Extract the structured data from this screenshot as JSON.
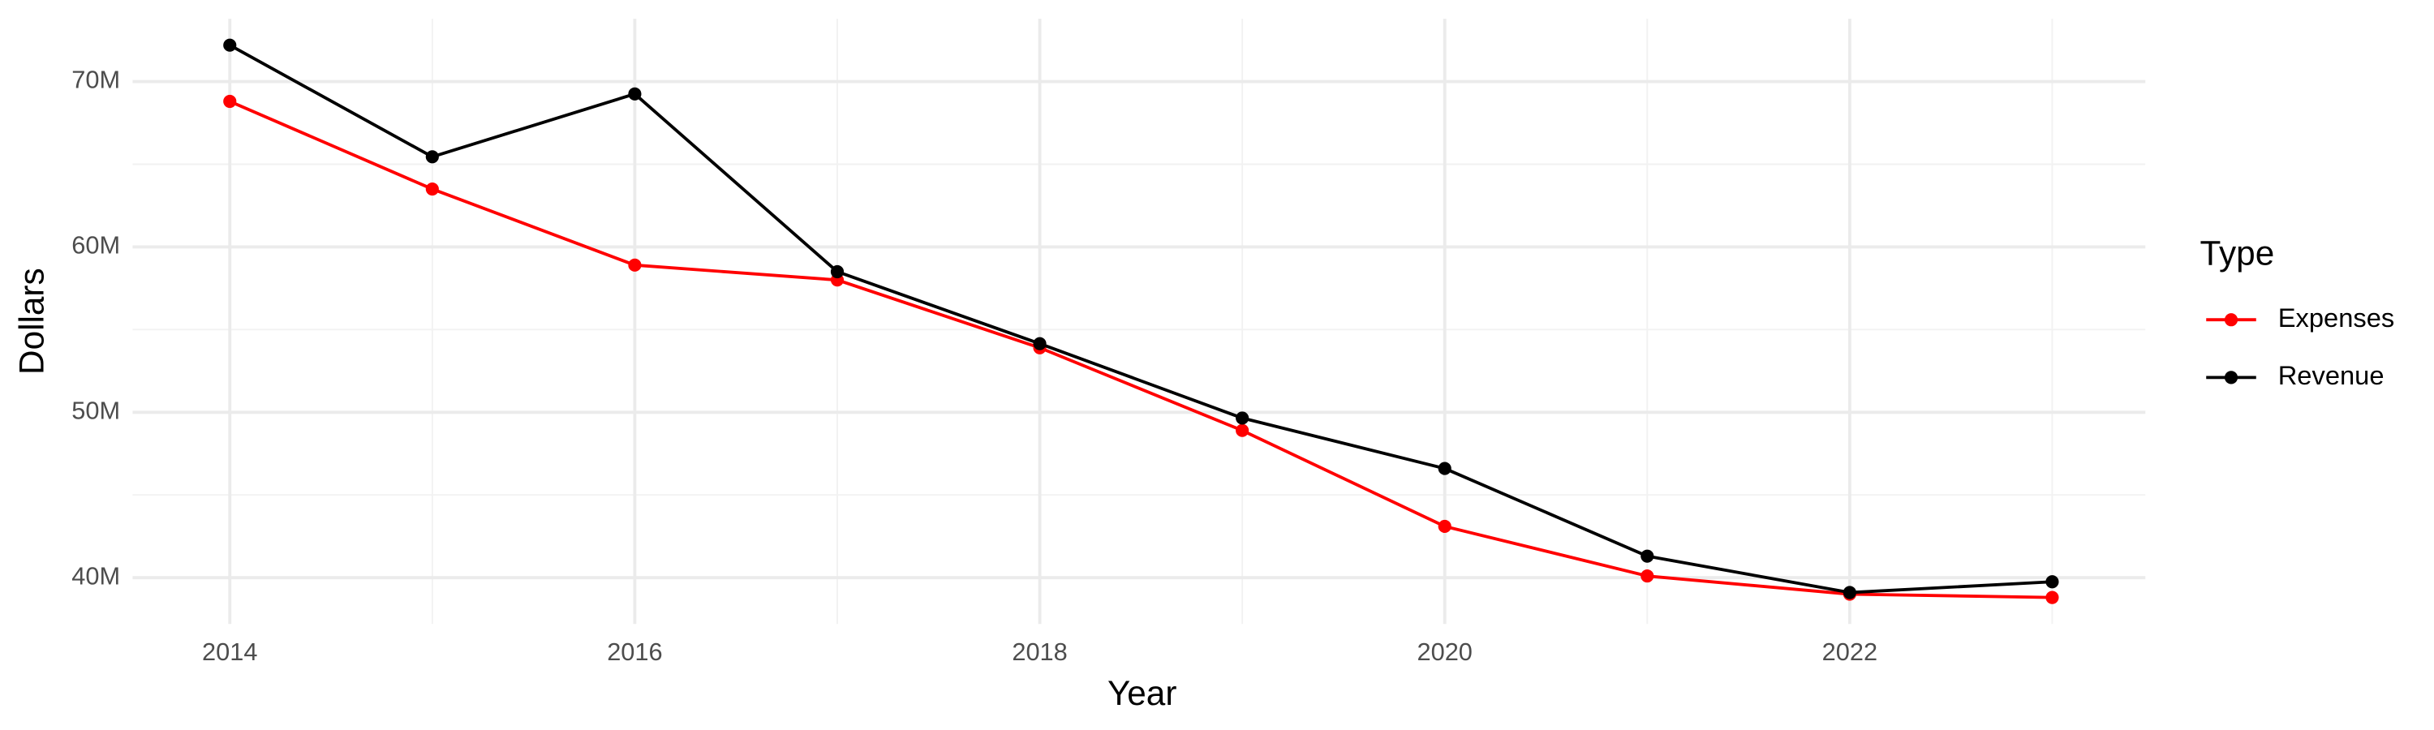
{
  "chart_data": {
    "type": "line",
    "x_label": "Year",
    "y_label": "Dollars",
    "legend_title": "Type",
    "x": [
      2014,
      2015,
      2016,
      2017,
      2018,
      2019,
      2020,
      2021,
      2022,
      2023
    ],
    "series": [
      {
        "name": "Expenses",
        "color": "#ff0000",
        "values": [
          68800000,
          63500000,
          58900000,
          58000000,
          53900000,
          48900000,
          43100000,
          40100000,
          39000000,
          38800000
        ]
      },
      {
        "name": "Revenue",
        "color": "#000000",
        "values": [
          72200000,
          65450000,
          69250000,
          58500000,
          54150000,
          49650000,
          46600000,
          41300000,
          39100000,
          39750000
        ]
      }
    ],
    "xlim": [
      2013.52,
      2023.46
    ],
    "xticks": [
      2014,
      2016,
      2018,
      2020,
      2022
    ],
    "ylim": [
      37200000,
      73800000
    ],
    "yticks": [
      {
        "value": 40000000,
        "label": "40M"
      },
      {
        "value": 50000000,
        "label": "50M"
      },
      {
        "value": 60000000,
        "label": "60M"
      },
      {
        "value": 70000000,
        "label": "70M"
      }
    ],
    "grid": true,
    "legend": "right"
  }
}
